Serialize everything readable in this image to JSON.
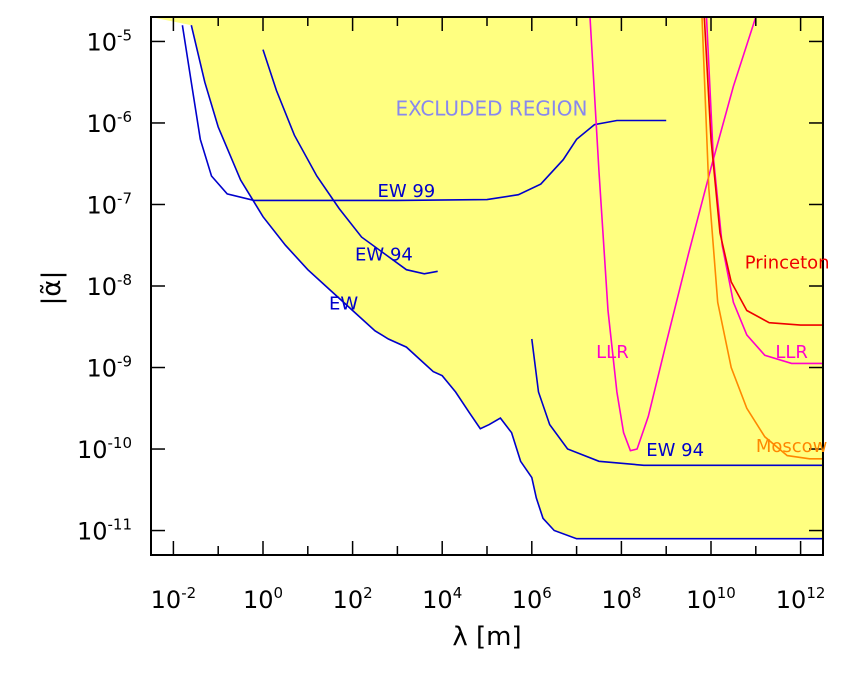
{
  "chart_data": {
    "type": "line",
    "xlabel": "λ [m]",
    "ylabel": "|α̃|",
    "x_scale": "log10",
    "y_scale": "log10",
    "xlim_log10": [
      -2.5,
      12.5
    ],
    "ylim_log10": [
      -11.3,
      -4.7
    ],
    "x_ticks": [
      {
        "base": "10",
        "exp": "-2",
        "value_log10": -2
      },
      {
        "base": "10",
        "exp": "0",
        "value_log10": 0
      },
      {
        "base": "10",
        "exp": "2",
        "value_log10": 2
      },
      {
        "base": "10",
        "exp": "4",
        "value_log10": 4
      },
      {
        "base": "10",
        "exp": "6",
        "value_log10": 6
      },
      {
        "base": "10",
        "exp": "8",
        "value_log10": 8
      },
      {
        "base": "10",
        "exp": "10",
        "value_log10": 10
      },
      {
        "base": "10",
        "exp": "12",
        "value_log10": 12
      }
    ],
    "y_ticks": [
      {
        "base": "10",
        "exp": "-5",
        "value_log10": -5
      },
      {
        "base": "10",
        "exp": "-6",
        "value_log10": -6
      },
      {
        "base": "10",
        "exp": "-7",
        "value_log10": -7
      },
      {
        "base": "10",
        "exp": "-8",
        "value_log10": -8
      },
      {
        "base": "10",
        "exp": "-9",
        "value_log10": -9
      },
      {
        "base": "10",
        "exp": "-10",
        "value_log10": -10
      },
      {
        "base": "10",
        "exp": "-11",
        "value_log10": -11
      }
    ],
    "excluded_region": {
      "label": "EXCLUDED REGION",
      "fill": "#ffff80",
      "label_color": "#8888ee",
      "label_at_log10": [
        5.1,
        -5.82
      ]
    },
    "series": [
      {
        "name": "EW",
        "color": "#0000cc",
        "label_at_log10": [
          1.8,
          -8.2
        ],
        "points_log10": [
          [
            -1.6,
            -4.8
          ],
          [
            -1.3,
            -5.5
          ],
          [
            -1.0,
            -6.05
          ],
          [
            -0.5,
            -6.7
          ],
          [
            0.0,
            -7.15
          ],
          [
            0.5,
            -7.5
          ],
          [
            1.0,
            -7.8
          ],
          [
            1.5,
            -8.05
          ],
          [
            2.0,
            -8.3
          ],
          [
            2.5,
            -8.55
          ],
          [
            2.8,
            -8.65
          ],
          [
            3.2,
            -8.75
          ],
          [
            3.5,
            -8.9
          ],
          [
            3.8,
            -9.05
          ],
          [
            4.0,
            -9.1
          ],
          [
            4.3,
            -9.3
          ],
          [
            4.6,
            -9.55
          ],
          [
            4.85,
            -9.75
          ],
          [
            5.05,
            -9.7
          ],
          [
            5.3,
            -9.62
          ],
          [
            5.55,
            -9.8
          ],
          [
            5.75,
            -10.15
          ],
          [
            6.0,
            -10.35
          ],
          [
            6.1,
            -10.6
          ],
          [
            6.25,
            -10.85
          ],
          [
            6.5,
            -11.0
          ],
          [
            7.0,
            -11.1
          ],
          [
            9.0,
            -11.1
          ],
          [
            12.5,
            -11.1
          ]
        ]
      },
      {
        "name": "EW 94",
        "color": "#0000cc",
        "label_at_log10": [
          2.7,
          -7.6
        ],
        "points_log10": [
          [
            0.0,
            -5.1
          ],
          [
            0.3,
            -5.6
          ],
          [
            0.7,
            -6.15
          ],
          [
            1.2,
            -6.65
          ],
          [
            1.7,
            -7.05
          ],
          [
            2.2,
            -7.4
          ],
          [
            2.7,
            -7.6
          ],
          [
            3.2,
            -7.8
          ],
          [
            3.6,
            -7.85
          ],
          [
            3.9,
            -7.82
          ]
        ]
      },
      {
        "name": "EW 94",
        "color": "#0000cc",
        "label_at_log10": [
          9.2,
          -10.0
        ],
        "points_log10": [
          [
            6.0,
            -8.65
          ],
          [
            6.15,
            -9.3
          ],
          [
            6.4,
            -9.7
          ],
          [
            6.8,
            -10.0
          ],
          [
            7.5,
            -10.15
          ],
          [
            8.5,
            -10.2
          ],
          [
            12.5,
            -10.2
          ]
        ]
      },
      {
        "name": "EW 99",
        "color": "#0000cc",
        "label_at_log10": [
          3.2,
          -6.82
        ],
        "points_log10": [
          [
            -1.8,
            -4.8
          ],
          [
            -1.6,
            -5.5
          ],
          [
            -1.4,
            -6.2
          ],
          [
            -1.15,
            -6.65
          ],
          [
            -0.8,
            -6.87
          ],
          [
            -0.2,
            -6.95
          ],
          [
            1.0,
            -6.95
          ],
          [
            3.0,
            -6.95
          ],
          [
            5.0,
            -6.94
          ],
          [
            5.7,
            -6.88
          ],
          [
            6.2,
            -6.75
          ],
          [
            6.7,
            -6.45
          ],
          [
            7.0,
            -6.2
          ],
          [
            7.4,
            -6.02
          ],
          [
            7.9,
            -5.97
          ],
          [
            9.0,
            -5.97
          ]
        ]
      },
      {
        "name": "LLR",
        "color": "#ff00cc",
        "label_at_log10": [
          7.8,
          -8.8
        ],
        "points_log10": [
          [
            7.3,
            -4.7
          ],
          [
            7.5,
            -6.6
          ],
          [
            7.7,
            -8.3
          ],
          [
            7.9,
            -9.3
          ],
          [
            8.05,
            -9.8
          ],
          [
            8.2,
            -10.02
          ],
          [
            8.35,
            -10.0
          ],
          [
            8.6,
            -9.6
          ],
          [
            9.0,
            -8.7
          ],
          [
            9.5,
            -7.6
          ],
          [
            10.0,
            -6.55
          ],
          [
            10.5,
            -5.55
          ],
          [
            11.0,
            -4.7
          ]
        ]
      },
      {
        "name": "LLR",
        "color": "#ff00cc",
        "label_at_log10": [
          11.8,
          -8.8
        ],
        "points_log10": [
          [
            9.9,
            -4.7
          ],
          [
            10.05,
            -6.4
          ],
          [
            10.25,
            -7.5
          ],
          [
            10.5,
            -8.2
          ],
          [
            10.8,
            -8.6
          ],
          [
            11.2,
            -8.85
          ],
          [
            11.8,
            -8.95
          ],
          [
            12.5,
            -8.95
          ]
        ]
      },
      {
        "name": "Princeton",
        "color": "#ee0000",
        "label_at_log10": [
          11.7,
          -7.7
        ],
        "points_log10": [
          [
            9.85,
            -4.7
          ],
          [
            10.0,
            -6.2
          ],
          [
            10.2,
            -7.35
          ],
          [
            10.45,
            -7.95
          ],
          [
            10.8,
            -8.3
          ],
          [
            11.3,
            -8.45
          ],
          [
            12.0,
            -8.48
          ],
          [
            12.5,
            -8.48
          ]
        ]
      },
      {
        "name": "Moscow",
        "color": "#ff8800",
        "label_at_log10": [
          11.8,
          -9.95
        ],
        "points_log10": [
          [
            9.8,
            -4.7
          ],
          [
            9.95,
            -6.8
          ],
          [
            10.15,
            -8.2
          ],
          [
            10.45,
            -9.0
          ],
          [
            10.8,
            -9.5
          ],
          [
            11.2,
            -9.85
          ],
          [
            11.7,
            -10.08
          ],
          [
            12.2,
            -10.12
          ],
          [
            12.5,
            -10.12
          ]
        ]
      }
    ],
    "excluded_boundary_note": "Yellow region lies above the lower envelope formed by EW and EW 94 curves"
  }
}
